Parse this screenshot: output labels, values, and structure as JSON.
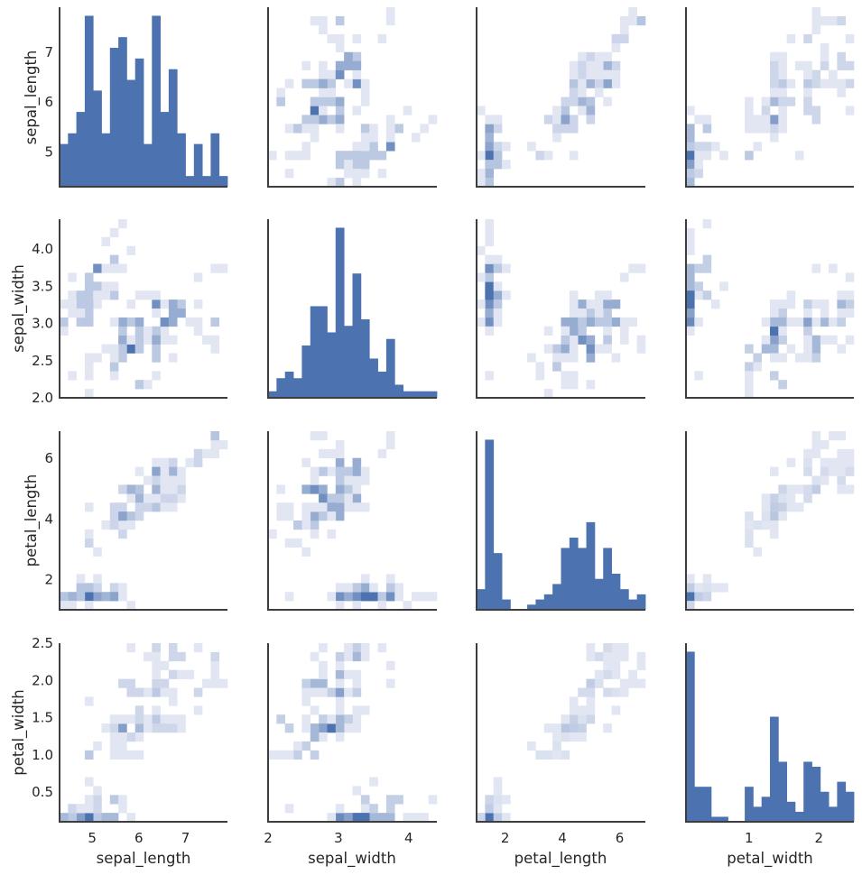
{
  "chart_data": {
    "type": "heatmap",
    "subtype": "pairplot",
    "title": "",
    "variables": [
      "sepal_length",
      "sepal_width",
      "petal_length",
      "petal_width"
    ],
    "axis_labels": {
      "x": [
        "sepal_length",
        "sepal_width",
        "petal_length",
        "petal_width"
      ],
      "y": [
        "sepal_length",
        "sepal_width",
        "petal_length",
        "petal_width"
      ]
    },
    "diagonal": "histogram",
    "off_diagonal": "hist2d",
    "bins": 20,
    "color": "#4c72b0",
    "axis_color": "#3d3d3d",
    "limits": {
      "sepal_length": [
        4.3,
        7.9
      ],
      "sepal_width": [
        2.0,
        4.4
      ],
      "petal_length": [
        1.0,
        6.9
      ],
      "petal_width": [
        0.1,
        2.5
      ]
    },
    "ticks": {
      "sepal_length": {
        "values": [
          5,
          6,
          7
        ],
        "labels": [
          "5",
          "6",
          "7"
        ]
      },
      "sepal_width_y": {
        "values": [
          2.0,
          2.5,
          3.0,
          3.5,
          4.0
        ],
        "labels": [
          "2.0",
          "2.5",
          "3.0",
          "3.5",
          "4.0"
        ]
      },
      "sepal_width_x": {
        "values": [
          2,
          3,
          4
        ],
        "labels": [
          "2",
          "3",
          "4"
        ]
      },
      "petal_length": {
        "values": [
          2,
          4,
          6
        ],
        "labels": [
          "2",
          "4",
          "6"
        ]
      },
      "petal_width_y": {
        "values": [
          0.5,
          1.0,
          1.5,
          2.0,
          2.5
        ],
        "labels": [
          "0.5",
          "1.0",
          "1.5",
          "2.0",
          "2.5"
        ]
      },
      "petal_width_x": {
        "values": [
          1,
          2
        ],
        "labels": [
          "1",
          "2"
        ]
      }
    },
    "data": [
      [
        5.1,
        3.5,
        1.4,
        0.2
      ],
      [
        4.9,
        3.0,
        1.4,
        0.2
      ],
      [
        4.7,
        3.2,
        1.3,
        0.2
      ],
      [
        4.6,
        3.1,
        1.5,
        0.2
      ],
      [
        5.0,
        3.6,
        1.4,
        0.2
      ],
      [
        5.4,
        3.9,
        1.7,
        0.4
      ],
      [
        4.6,
        3.4,
        1.4,
        0.3
      ],
      [
        5.0,
        3.4,
        1.5,
        0.2
      ],
      [
        4.4,
        2.9,
        1.4,
        0.2
      ],
      [
        4.9,
        3.1,
        1.5,
        0.1
      ],
      [
        5.4,
        3.7,
        1.5,
        0.2
      ],
      [
        4.8,
        3.4,
        1.6,
        0.2
      ],
      [
        4.8,
        3.0,
        1.4,
        0.1
      ],
      [
        4.3,
        3.0,
        1.1,
        0.1
      ],
      [
        5.8,
        4.0,
        1.2,
        0.2
      ],
      [
        5.7,
        4.4,
        1.5,
        0.4
      ],
      [
        5.4,
        3.9,
        1.3,
        0.4
      ],
      [
        5.1,
        3.5,
        1.4,
        0.3
      ],
      [
        5.7,
        3.8,
        1.7,
        0.3
      ],
      [
        5.1,
        3.8,
        1.5,
        0.3
      ],
      [
        5.4,
        3.4,
        1.7,
        0.2
      ],
      [
        5.1,
        3.7,
        1.5,
        0.4
      ],
      [
        4.6,
        3.6,
        1.0,
        0.2
      ],
      [
        5.1,
        3.3,
        1.7,
        0.5
      ],
      [
        4.8,
        3.4,
        1.9,
        0.2
      ],
      [
        5.0,
        3.0,
        1.6,
        0.2
      ],
      [
        5.0,
        3.4,
        1.6,
        0.4
      ],
      [
        5.2,
        3.5,
        1.5,
        0.2
      ],
      [
        5.2,
        3.4,
        1.4,
        0.2
      ],
      [
        4.7,
        3.2,
        1.6,
        0.2
      ],
      [
        4.8,
        3.1,
        1.6,
        0.2
      ],
      [
        5.4,
        3.4,
        1.5,
        0.4
      ],
      [
        5.2,
        4.1,
        1.5,
        0.1
      ],
      [
        5.5,
        4.2,
        1.4,
        0.2
      ],
      [
        4.9,
        3.1,
        1.5,
        0.2
      ],
      [
        5.0,
        3.2,
        1.2,
        0.2
      ],
      [
        5.5,
        3.5,
        1.3,
        0.2
      ],
      [
        4.9,
        3.6,
        1.4,
        0.1
      ],
      [
        4.4,
        3.0,
        1.3,
        0.2
      ],
      [
        5.1,
        3.4,
        1.5,
        0.2
      ],
      [
        5.0,
        3.5,
        1.3,
        0.3
      ],
      [
        4.5,
        2.3,
        1.3,
        0.3
      ],
      [
        4.4,
        3.2,
        1.3,
        0.2
      ],
      [
        5.0,
        3.5,
        1.6,
        0.6
      ],
      [
        5.1,
        3.8,
        1.9,
        0.4
      ],
      [
        4.8,
        3.0,
        1.4,
        0.3
      ],
      [
        5.1,
        3.8,
        1.6,
        0.2
      ],
      [
        4.6,
        3.2,
        1.4,
        0.2
      ],
      [
        5.3,
        3.7,
        1.5,
        0.2
      ],
      [
        5.0,
        3.3,
        1.4,
        0.2
      ],
      [
        7.0,
        3.2,
        4.7,
        1.4
      ],
      [
        6.4,
        3.2,
        4.5,
        1.5
      ],
      [
        6.9,
        3.1,
        4.9,
        1.5
      ],
      [
        5.5,
        2.3,
        4.0,
        1.3
      ],
      [
        6.5,
        2.8,
        4.6,
        1.5
      ],
      [
        5.7,
        2.8,
        4.5,
        1.3
      ],
      [
        6.3,
        3.3,
        4.7,
        1.6
      ],
      [
        4.9,
        2.4,
        3.3,
        1.0
      ],
      [
        6.6,
        2.9,
        4.6,
        1.3
      ],
      [
        5.2,
        2.7,
        3.9,
        1.4
      ],
      [
        5.0,
        2.0,
        3.5,
        1.0
      ],
      [
        5.9,
        3.0,
        4.2,
        1.5
      ],
      [
        6.0,
        2.2,
        4.0,
        1.0
      ],
      [
        6.1,
        2.9,
        4.7,
        1.4
      ],
      [
        5.6,
        2.9,
        3.6,
        1.3
      ],
      [
        6.7,
        3.1,
        4.4,
        1.4
      ],
      [
        5.6,
        3.0,
        4.5,
        1.5
      ],
      [
        5.8,
        2.7,
        4.1,
        1.0
      ],
      [
        6.2,
        2.2,
        4.5,
        1.5
      ],
      [
        5.6,
        2.5,
        3.9,
        1.1
      ],
      [
        5.9,
        3.2,
        4.8,
        1.8
      ],
      [
        6.1,
        2.8,
        4.0,
        1.3
      ],
      [
        6.3,
        2.5,
        4.9,
        1.5
      ],
      [
        6.1,
        2.8,
        4.7,
        1.2
      ],
      [
        6.4,
        2.9,
        4.3,
        1.3
      ],
      [
        6.6,
        3.0,
        4.4,
        1.4
      ],
      [
        6.8,
        2.8,
        4.8,
        1.4
      ],
      [
        6.7,
        3.0,
        5.0,
        1.7
      ],
      [
        6.0,
        2.9,
        4.5,
        1.5
      ],
      [
        5.7,
        2.6,
        3.5,
        1.0
      ],
      [
        5.5,
        2.4,
        3.8,
        1.1
      ],
      [
        5.5,
        2.4,
        3.7,
        1.0
      ],
      [
        5.8,
        2.7,
        3.9,
        1.2
      ],
      [
        6.0,
        2.7,
        5.1,
        1.6
      ],
      [
        5.4,
        3.0,
        4.5,
        1.5
      ],
      [
        6.0,
        3.4,
        4.5,
        1.6
      ],
      [
        6.7,
        3.1,
        4.7,
        1.5
      ],
      [
        6.3,
        2.3,
        4.4,
        1.3
      ],
      [
        5.6,
        3.0,
        4.1,
        1.3
      ],
      [
        5.5,
        2.5,
        4.0,
        1.3
      ],
      [
        5.5,
        2.6,
        4.4,
        1.2
      ],
      [
        6.1,
        3.0,
        4.6,
        1.4
      ],
      [
        5.8,
        2.6,
        4.0,
        1.2
      ],
      [
        5.0,
        2.3,
        3.3,
        1.0
      ],
      [
        5.6,
        2.7,
        4.2,
        1.3
      ],
      [
        5.7,
        3.0,
        4.2,
        1.2
      ],
      [
        5.7,
        2.9,
        4.2,
        1.3
      ],
      [
        6.2,
        2.9,
        4.3,
        1.3
      ],
      [
        5.1,
        2.5,
        3.0,
        1.1
      ],
      [
        5.7,
        2.8,
        4.1,
        1.3
      ],
      [
        6.3,
        3.3,
        6.0,
        2.5
      ],
      [
        5.8,
        2.7,
        5.1,
        1.9
      ],
      [
        7.1,
        3.0,
        5.9,
        2.1
      ],
      [
        6.3,
        2.9,
        5.6,
        1.8
      ],
      [
        6.5,
        3.0,
        5.8,
        2.2
      ],
      [
        7.6,
        3.0,
        6.6,
        2.1
      ],
      [
        4.9,
        2.5,
        4.5,
        1.7
      ],
      [
        7.3,
        2.9,
        6.3,
        1.8
      ],
      [
        6.7,
        2.5,
        5.8,
        1.8
      ],
      [
        7.2,
        3.6,
        6.1,
        2.5
      ],
      [
        6.5,
        3.2,
        5.1,
        2.0
      ],
      [
        6.4,
        2.7,
        5.3,
        1.9
      ],
      [
        6.8,
        3.0,
        5.5,
        2.1
      ],
      [
        5.7,
        2.5,
        5.0,
        2.0
      ],
      [
        5.8,
        2.8,
        5.1,
        2.4
      ],
      [
        6.4,
        3.2,
        5.3,
        2.3
      ],
      [
        6.5,
        3.0,
        5.5,
        1.8
      ],
      [
        7.7,
        3.8,
        6.7,
        2.2
      ],
      [
        7.7,
        2.6,
        6.9,
        2.3
      ],
      [
        6.0,
        2.2,
        5.0,
        1.5
      ],
      [
        6.9,
        3.2,
        5.7,
        2.3
      ],
      [
        5.6,
        2.8,
        4.9,
        2.0
      ],
      [
        7.7,
        2.8,
        6.7,
        2.0
      ],
      [
        6.3,
        2.7,
        4.9,
        1.8
      ],
      [
        6.7,
        3.3,
        5.7,
        2.1
      ],
      [
        7.2,
        3.2,
        6.0,
        1.8
      ],
      [
        6.2,
        2.8,
        4.8,
        1.8
      ],
      [
        6.1,
        3.0,
        4.9,
        1.8
      ],
      [
        6.4,
        2.8,
        5.6,
        2.1
      ],
      [
        7.2,
        3.0,
        5.8,
        1.6
      ],
      [
        7.4,
        2.8,
        6.1,
        1.9
      ],
      [
        7.9,
        3.8,
        6.4,
        2.0
      ],
      [
        6.4,
        2.8,
        5.6,
        2.2
      ],
      [
        6.3,
        2.8,
        5.1,
        1.5
      ],
      [
        6.1,
        2.6,
        5.6,
        1.4
      ],
      [
        7.7,
        3.0,
        6.1,
        2.3
      ],
      [
        6.3,
        3.4,
        5.6,
        2.4
      ],
      [
        6.4,
        3.1,
        5.5,
        1.8
      ],
      [
        6.0,
        3.0,
        4.8,
        1.8
      ],
      [
        6.9,
        3.1,
        5.4,
        2.1
      ],
      [
        6.7,
        3.1,
        5.6,
        2.4
      ],
      [
        6.9,
        3.1,
        5.1,
        2.3
      ],
      [
        5.8,
        2.7,
        5.1,
        1.9
      ],
      [
        6.8,
        3.2,
        5.9,
        2.3
      ],
      [
        6.7,
        3.3,
        5.7,
        2.5
      ],
      [
        6.7,
        3.0,
        5.2,
        2.3
      ],
      [
        6.3,
        2.5,
        5.0,
        1.9
      ],
      [
        6.5,
        3.0,
        5.2,
        2.0
      ],
      [
        6.2,
        3.4,
        5.4,
        2.3
      ],
      [
        5.9,
        3.0,
        5.1,
        1.8
      ]
    ]
  }
}
